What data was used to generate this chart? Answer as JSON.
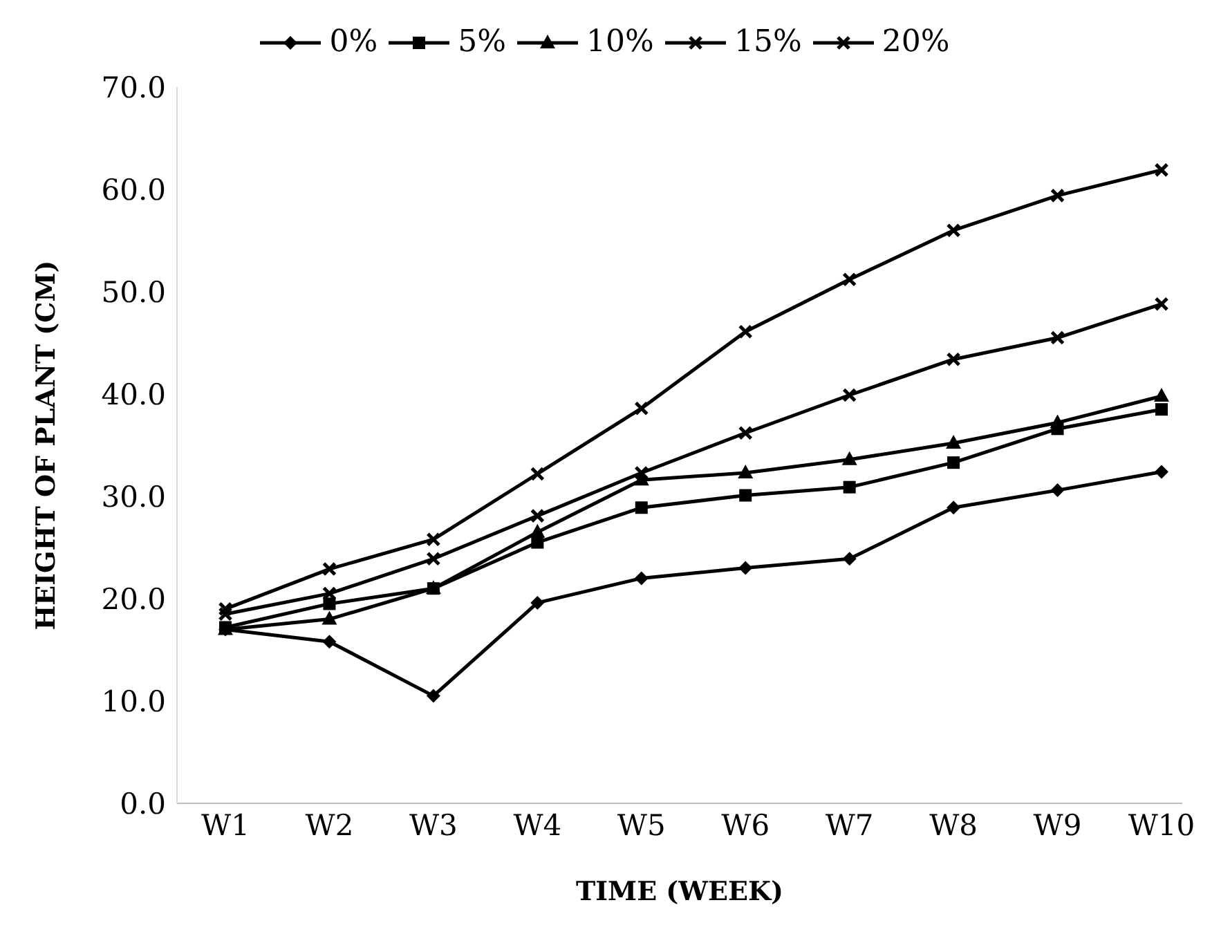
{
  "chart_data": {
    "type": "line",
    "xlabel": "TIME (WEEK)",
    "ylabel": "HEIGHT OF PLANT (CM)",
    "categories": [
      "W1",
      "W2",
      "W3",
      "W4",
      "W5",
      "W6",
      "W7",
      "W8",
      "W9",
      "W10"
    ],
    "series": [
      {
        "name": "0%",
        "color": "#000000",
        "marker": "diamond",
        "values": [
          17.0,
          15.8,
          10.5,
          19.6,
          22.0,
          23.0,
          23.9,
          28.9,
          30.6,
          32.4
        ]
      },
      {
        "name": "5%",
        "color": "#000000",
        "marker": "square",
        "values": [
          17.2,
          19.5,
          21.0,
          25.5,
          28.9,
          30.1,
          30.9,
          33.3,
          36.6,
          38.5
        ]
      },
      {
        "name": "10%",
        "color": "#000000",
        "marker": "triangle",
        "values": [
          17.0,
          18.0,
          21.0,
          26.5,
          31.6,
          32.3,
          33.6,
          35.2,
          37.2,
          39.8
        ]
      },
      {
        "name": "15%",
        "color": "#000000",
        "marker": "cross",
        "values": [
          18.5,
          20.5,
          23.9,
          28.1,
          32.3,
          36.2,
          39.9,
          43.4,
          45.5,
          48.8
        ]
      },
      {
        "name": "20%",
        "color": "#000000",
        "marker": "cross",
        "values": [
          19.0,
          22.9,
          25.8,
          32.2,
          38.6,
          46.1,
          51.2,
          56.0,
          59.4,
          61.9
        ]
      }
    ],
    "ylim": [
      0,
      70
    ],
    "yticks": [
      {
        "value": 0,
        "label": "0.0"
      },
      {
        "value": 10,
        "label": "10.0"
      },
      {
        "value": 20,
        "label": "20.0"
      },
      {
        "value": 30,
        "label": "30.0"
      },
      {
        "value": 40,
        "label": "40.0"
      },
      {
        "value": 50,
        "label": "50.0"
      },
      {
        "value": 60,
        "label": "60.0"
      },
      {
        "value": 70,
        "label": "70.0"
      }
    ],
    "grid": false,
    "legend": "top",
    "line_style": "solid"
  }
}
